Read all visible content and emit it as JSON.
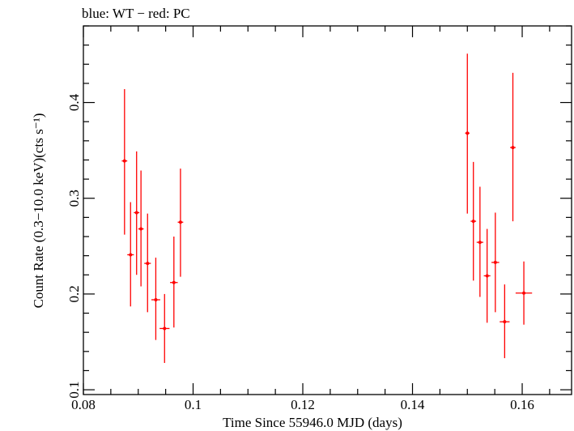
{
  "chart_data": {
    "type": "scatter",
    "title": "blue: WT − red: PC",
    "xlabel": "Time Since 55946.0 MJD (days)",
    "ylabel": "Count Rate (0.3−10.0 keV)(cts s⁻¹)",
    "xlim": [
      0.08,
      0.169
    ],
    "ylim": [
      0.095,
      0.48
    ],
    "log_y": false,
    "grid": false,
    "x_ticks": [
      0.08,
      0.1,
      0.12,
      0.14,
      0.16
    ],
    "x_tick_labels": [
      "0.08",
      "0.1",
      "0.12",
      "0.14",
      "0.16"
    ],
    "y_ticks": [
      0.1,
      0.2,
      0.3,
      0.4
    ],
    "y_tick_labels": [
      "0.1",
      "0.2",
      "0.3",
      "0.4"
    ],
    "series": [
      {
        "name": "PC",
        "color": "#ff0000",
        "points": [
          {
            "x": 0.0875,
            "xerr": 0.0005,
            "y": 0.339,
            "ylo": 0.262,
            "yhi": 0.414
          },
          {
            "x": 0.0886,
            "xerr": 0.0006,
            "y": 0.241,
            "ylo": 0.187,
            "yhi": 0.296
          },
          {
            "x": 0.0897,
            "xerr": 0.0005,
            "y": 0.285,
            "ylo": 0.22,
            "yhi": 0.349
          },
          {
            "x": 0.0905,
            "xerr": 0.0005,
            "y": 0.268,
            "ylo": 0.208,
            "yhi": 0.329
          },
          {
            "x": 0.0917,
            "xerr": 0.0006,
            "y": 0.232,
            "ylo": 0.181,
            "yhi": 0.284
          },
          {
            "x": 0.0932,
            "xerr": 0.0008,
            "y": 0.194,
            "ylo": 0.152,
            "yhi": 0.238
          },
          {
            "x": 0.0948,
            "xerr": 0.0009,
            "y": 0.164,
            "ylo": 0.128,
            "yhi": 0.2
          },
          {
            "x": 0.0965,
            "xerr": 0.0007,
            "y": 0.212,
            "ylo": 0.165,
            "yhi": 0.26
          },
          {
            "x": 0.0977,
            "xerr": 0.0005,
            "y": 0.275,
            "ylo": 0.218,
            "yhi": 0.331
          },
          {
            "x": 0.15,
            "xerr": 0.0004,
            "y": 0.368,
            "ylo": 0.284,
            "yhi": 0.451
          },
          {
            "x": 0.1511,
            "xerr": 0.0005,
            "y": 0.276,
            "ylo": 0.214,
            "yhi": 0.338
          },
          {
            "x": 0.1523,
            "xerr": 0.0006,
            "y": 0.254,
            "ylo": 0.197,
            "yhi": 0.312
          },
          {
            "x": 0.1536,
            "xerr": 0.0006,
            "y": 0.219,
            "ylo": 0.17,
            "yhi": 0.268
          },
          {
            "x": 0.1551,
            "xerr": 0.0007,
            "y": 0.233,
            "ylo": 0.181,
            "yhi": 0.285
          },
          {
            "x": 0.1568,
            "xerr": 0.0009,
            "y": 0.171,
            "ylo": 0.133,
            "yhi": 0.21
          },
          {
            "x": 0.1583,
            "xerr": 0.0005,
            "y": 0.353,
            "ylo": 0.276,
            "yhi": 0.431
          },
          {
            "x": 0.1603,
            "xerr": 0.0015,
            "y": 0.201,
            "ylo": 0.168,
            "yhi": 0.234
          }
        ]
      }
    ]
  }
}
